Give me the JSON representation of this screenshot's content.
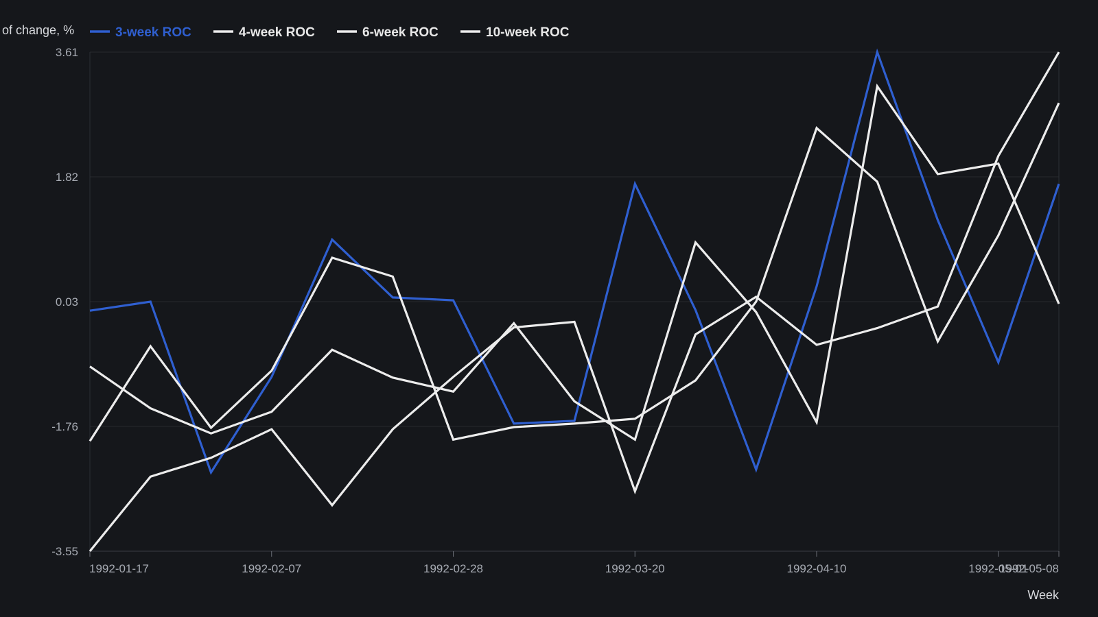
{
  "chart_data": {
    "type": "line",
    "title": "",
    "ylabel": "of change, %",
    "xlabel": "Week",
    "ylim": [
      -3.55,
      3.61
    ],
    "yticks": [
      "3.61",
      "1.82",
      "0.03",
      "-1.76",
      "-3.55"
    ],
    "xticks": [
      "1992-01-17",
      "1992-02-07",
      "1992-02-28",
      "1992-03-20",
      "1992-04-10",
      "1992-05-01",
      "1992-05-08"
    ],
    "x": [
      "1992-01-17",
      "1992-01-24",
      "1992-01-31",
      "1992-02-07",
      "1992-02-14",
      "1992-02-21",
      "1992-02-28",
      "1992-03-06",
      "1992-03-13",
      "1992-03-20",
      "1992-03-27",
      "1992-04-03",
      "1992-04-10",
      "1992-04-17",
      "1992-04-24",
      "1992-05-01",
      "1992-05-08"
    ],
    "grid": true,
    "legend": "top-left",
    "series": [
      {
        "name": "3-week ROC",
        "color": "#2f5fd0",
        "values": [
          -0.1,
          0.03,
          -2.42,
          -1.05,
          0.92,
          0.09,
          0.05,
          -1.72,
          -1.68,
          1.72,
          -0.09,
          -2.38,
          0.25,
          3.61,
          1.2,
          -0.84,
          1.72
        ]
      },
      {
        "name": "4-week ROC",
        "color": "#ececec",
        "values": [
          -0.9,
          -1.5,
          -1.86,
          -1.55,
          -0.66,
          -1.06,
          -1.26,
          -0.28,
          -1.4,
          -1.95,
          0.88,
          -0.12,
          -1.7,
          3.12,
          1.86,
          2.01,
          0.0
        ]
      },
      {
        "name": "6-week ROC",
        "color": "#ececec",
        "values": [
          -1.97,
          -0.61,
          -1.78,
          -0.96,
          0.66,
          0.39,
          -1.95,
          -1.77,
          -1.72,
          -1.65,
          -1.1,
          0.03,
          2.52,
          1.75,
          -0.54,
          0.98,
          2.88
        ]
      },
      {
        "name": "10-week ROC",
        "color": "#ececec",
        "values": [
          -3.55,
          -2.48,
          -2.21,
          -1.8,
          -2.89,
          -1.8,
          -1.05,
          -0.34,
          -0.26,
          -2.69,
          -0.44,
          0.1,
          -0.59,
          -0.35,
          -0.04,
          2.12,
          3.61
        ]
      }
    ]
  }
}
